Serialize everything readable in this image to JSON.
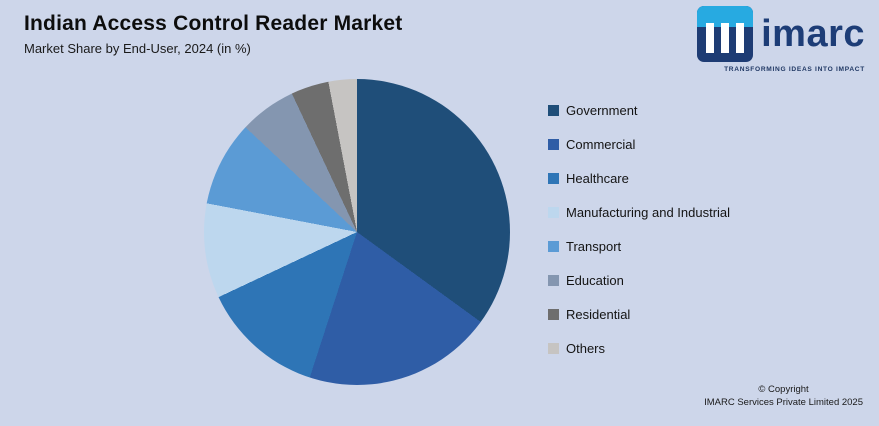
{
  "header": {
    "title": "Indian Access Control Reader Market",
    "subtitle": "Market Share by End-User, 2024 (in %)"
  },
  "logo": {
    "text": "imarc",
    "tagline": "TRANSFORMING IDEAS INTO IMPACT",
    "mark_colors": {
      "navy": "#1e3c74",
      "cyan": "#27aae1",
      "pillars": "#ffffff"
    }
  },
  "footer": {
    "copyright_line1": "© Copyright",
    "copyright_line2": "IMARC Services Private Limited 2025"
  },
  "colors": {
    "background": "#cdd6ea",
    "title_text": "#0d0d0d",
    "brand_navy": "#1d3d77",
    "brand_cyan": "#27aae1"
  },
  "chart_data": {
    "type": "pie",
    "title": "Indian Access Control Reader Market",
    "subtitle": "Market Share by End-User, 2024 (in %)",
    "legend_position": "right",
    "start_angle_deg": 0,
    "direction": "clockwise",
    "data_labels_shown": false,
    "segments": [
      {
        "label": "Government",
        "value": 35,
        "color": "#1f4e79"
      },
      {
        "label": "Commercial",
        "value": 20,
        "color": "#2f5da6"
      },
      {
        "label": "Healthcare",
        "value": 13,
        "color": "#2e75b6"
      },
      {
        "label": "Manufacturing and Industrial",
        "value": 10,
        "color": "#bdd7ee"
      },
      {
        "label": "Transport",
        "value": 9,
        "color": "#5b9bd5"
      },
      {
        "label": "Education",
        "value": 6,
        "color": "#8496b0"
      },
      {
        "label": "Residential",
        "value": 4,
        "color": "#6e6e6e"
      },
      {
        "label": "Others",
        "value": 3,
        "color": "#c6c4c2"
      }
    ]
  }
}
